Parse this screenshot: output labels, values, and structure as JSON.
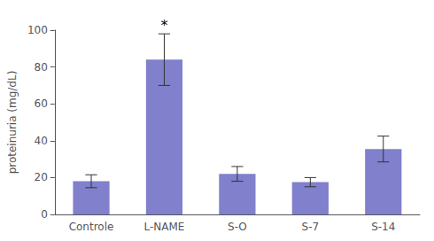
{
  "chart_data": {
    "type": "bar",
    "categories": [
      "Controle",
      "L-NAME",
      "S-O",
      "S-7",
      "S-14"
    ],
    "values": [
      18.0,
      84.0,
      22.0,
      17.5,
      35.5
    ],
    "errors": [
      3.5,
      14.0,
      4.0,
      2.5,
      7.0
    ],
    "color": "#8080cc",
    "ylabel": "proteinuria (mg/dL)",
    "ylim": [
      0,
      100
    ],
    "yticks": [
      0,
      20,
      40,
      60,
      80,
      100
    ],
    "grid": false,
    "annotations": [
      {
        "text": "*",
        "category": "L-NAME"
      }
    ]
  }
}
